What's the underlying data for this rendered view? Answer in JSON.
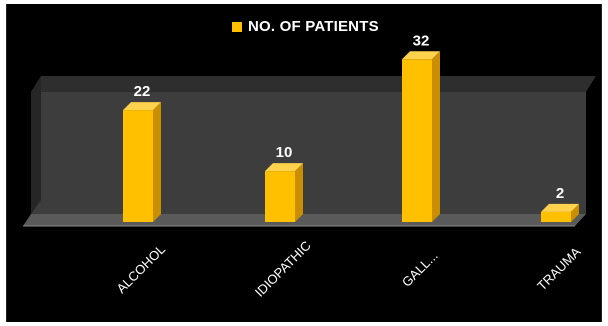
{
  "chart_data": {
    "type": "bar",
    "categories": [
      "ALCOHOL",
      "IDIOPATHIC",
      "GALL...",
      "TRAUMA"
    ],
    "series": [
      {
        "name": "NO. OF PATIENTS",
        "values": [
          22,
          10,
          32,
          2
        ],
        "color": "#ffc000"
      }
    ],
    "legend": "top",
    "grid": false,
    "ylim": [
      0,
      35
    ],
    "colors": {
      "background": "#000000",
      "wall": "#3d3d3d",
      "floor": "#5a5a5a",
      "bar": "#ffc000"
    }
  }
}
